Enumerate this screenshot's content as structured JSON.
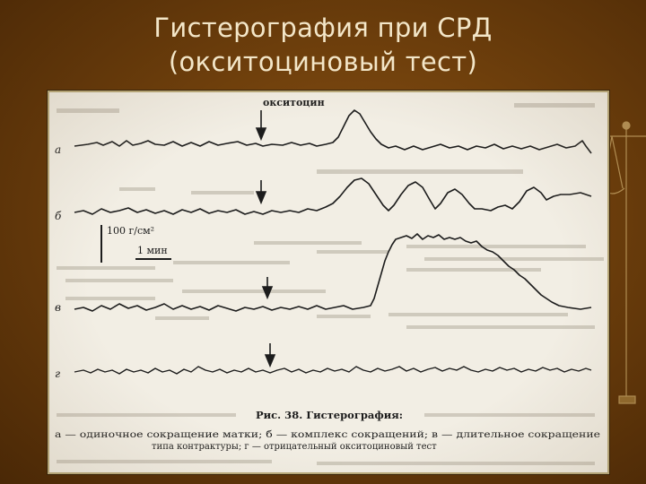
{
  "slide": {
    "title_line1": "Гистерография при СРД",
    "title_line2": "(окситоциновый тест)"
  },
  "figure": {
    "drug_label": "окситоцин",
    "trace_labels": [
      "а",
      "б",
      "в",
      "г"
    ],
    "scale_pressure": "100 г/см²",
    "scale_time": "1 мин",
    "caption_title": "Рис. 38. Гистерография:",
    "caption_line1": "а — одиночное сокращение матки; б — комплекс сокращений; в — длительное сокращение",
    "caption_line2": "типа контрактуры; г — отрицательный окситоциновый тест"
  },
  "colors": {
    "background": "#6e3f0c",
    "title_text": "#f3e6c8",
    "paper": "#f2eee4",
    "ink": "#1c1c1c"
  },
  "icons": [
    "scales-of-justice-icon",
    "down-arrow-icon"
  ]
}
